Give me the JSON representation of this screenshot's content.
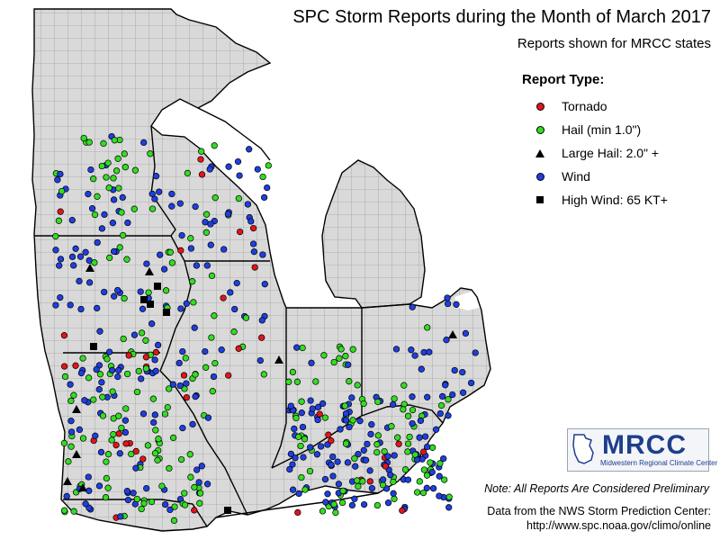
{
  "title": "SPC Storm Reports during the Month of March 2017",
  "subtitle": "Reports shown for MRCC states",
  "legend": {
    "title": "Report Type:",
    "items": [
      {
        "label": "Tornado",
        "symbol": "dot",
        "color": "#e3141b"
      },
      {
        "label": "Hail (min 1.0\")",
        "symbol": "dot",
        "color": "#33dd22"
      },
      {
        "label": "Large Hail: 2.0\" +",
        "symbol": "triangle",
        "color": "#000000"
      },
      {
        "label": "Wind",
        "symbol": "dot",
        "color": "#1f3fe0"
      },
      {
        "label": "High Wind: 65 KT+",
        "symbol": "square",
        "color": "#000000"
      }
    ]
  },
  "logo": {
    "text": "MRCC",
    "subtext": "Midwestern Regional Climate Center"
  },
  "note": "Note: All Reports Are Considered Preliminary",
  "credit": {
    "line1": "Data from the NWS Storm Prediction Center:",
    "line2": "http://www.spc.noaa.gov/climo/online"
  },
  "map": {
    "region": "Midwest (MRCC states)",
    "land_color": "#d9d9d9",
    "water_color": "#ffffff",
    "county_line_color": "#808080",
    "state_line_color": "#000000"
  }
}
